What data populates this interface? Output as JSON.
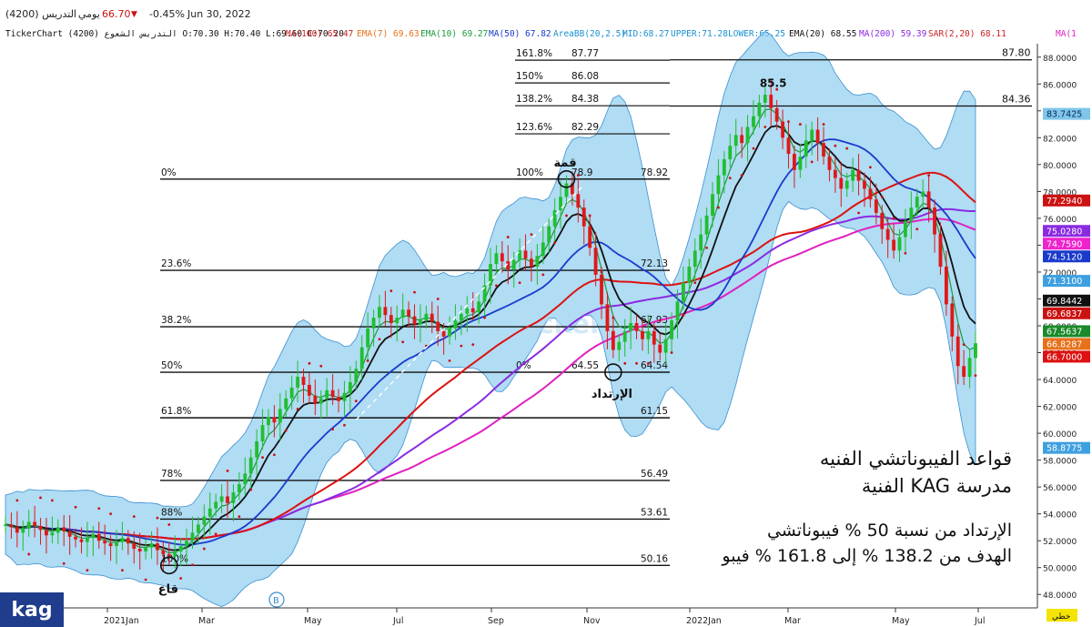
{
  "header": {
    "symbol_name": "(4200) التدريس",
    "period": "يومي",
    "last_price": "66.70",
    "change_pct": "-0.45%",
    "date": "Jun 30, 2022"
  },
  "indicators_row": {
    "ohlc": "TickerChart التدريس الشعوع (4200) O:70.30 H:70.40 L:69.60 C:70.20",
    "items": [
      {
        "text": "MA(100) 65.47",
        "color": "#cc2222"
      },
      {
        "text": "EMA(7) 69.63",
        "color": "#e8701a"
      },
      {
        "text": "EMA(10) 69.27",
        "color": "#1a9a3a"
      },
      {
        "text": "MA(50) 67.82",
        "color": "#1a3acc"
      },
      {
        "text": "AreaBB(20,2.5)",
        "color": "#1a90d0"
      },
      {
        "text": "MID:68.27",
        "color": "#1a90d0"
      },
      {
        "text": "UPPER:71.28",
        "color": "#1a90d0"
      },
      {
        "text": "LOWER:65.25",
        "color": "#1a90d0"
      },
      {
        "text": "EMA(20) 68.55",
        "color": "#111111"
      },
      {
        "text": "MA(200) 59.39",
        "color": "#8a2be2"
      },
      {
        "text": "SAR(2,20) 68.11",
        "color": "#cc2222"
      },
      {
        "text": "MA(1",
        "color": "#e020c0"
      }
    ]
  },
  "chart_data": {
    "type": "candlestick",
    "y_axis": {
      "ylim": [
        47,
        89
      ],
      "ticks": [
        "48.0000",
        "50.0000",
        "52.0000",
        "54.0000",
        "56.0000",
        "58.0000",
        "60.0000",
        "62.0000",
        "64.0000",
        "66.0000",
        "68.0000",
        "70.0000",
        "72.0000",
        "74.0000",
        "76.0000",
        "78.0000",
        "80.0000",
        "82.0000",
        "84.0000",
        "86.0000",
        "88.0000"
      ]
    },
    "x_axis": {
      "ticks": [
        "2021Jan",
        "Mar",
        "May",
        "Jul",
        "Sep",
        "Nov",
        "2022Jan",
        "Mar",
        "May",
        "Jul"
      ]
    },
    "price_tags": [
      {
        "value": 83.7425,
        "label": "83.7425",
        "color": "#7fc6ea",
        "text_color": "#0a2a5a"
      },
      {
        "value": 77.294,
        "label": "77.2940",
        "color": "#cc1111",
        "text_color": "#ffffff"
      },
      {
        "value": 75.028,
        "label": "75.0280",
        "color": "#8a2be2",
        "text_color": "#ffffff"
      },
      {
        "value": 74.759,
        "label": "74.7590",
        "color": "#ee22cc",
        "text_color": "#ffffff"
      },
      {
        "value": 74.512,
        "label": "74.5120",
        "color": "#1a3acc",
        "text_color": "#ffffff"
      },
      {
        "value": 71.31,
        "label": "71.3100",
        "color": "#3ea0e0",
        "text_color": "#ffffff"
      },
      {
        "value": 69.8442,
        "label": "69.8442",
        "color": "#111111",
        "text_color": "#ffffff"
      },
      {
        "value": 69.6837,
        "label": "69.6837",
        "color": "#cc1111",
        "text_color": "#ffffff"
      },
      {
        "value": 67.5637,
        "label": "67.5637",
        "color": "#1a8a2a",
        "text_color": "#ffffff"
      },
      {
        "value": 66.8287,
        "label": "66.8287",
        "color": "#e8701a",
        "text_color": "#ffffff"
      },
      {
        "value": 66.7,
        "label": "66.7000",
        "color": "#dd1111",
        "text_color": "#ffffff"
      },
      {
        "value": 58.8775,
        "label": "58.8775",
        "color": "#3ea0e0",
        "text_color": "#ffffff"
      }
    ],
    "fibonacci_1": {
      "levels": [
        {
          "label": "0%",
          "value": 78.92,
          "value_label": "78.92"
        },
        {
          "label": "23.6%",
          "value": 72.13,
          "value_label": "72.13"
        },
        {
          "label": "38.2%",
          "value": 67.93,
          "value_label": "67.93"
        },
        {
          "label": "50%",
          "value": 64.54,
          "value_label": "64.54"
        },
        {
          "label": "61.8%",
          "value": 61.15,
          "value_label": "61.15"
        },
        {
          "label": "78%",
          "value": 56.49,
          "value_label": "56.49"
        },
        {
          "label": "88%",
          "value": 53.61,
          "value_label": "53.61"
        },
        {
          "label": "100%",
          "value": 50.16,
          "value_label": "50.16"
        }
      ]
    },
    "fibonacci_2": {
      "levels": [
        {
          "label": "161.8%",
          "value": 87.77,
          "value_label": "87.77"
        },
        {
          "label": "150%",
          "value": 86.08,
          "value_label": "86.08"
        },
        {
          "label": "138.2%",
          "value": 84.38,
          "value_label": "84.38"
        },
        {
          "label": "123.6%",
          "value": 82.29,
          "value_label": "82.29"
        },
        {
          "label": "100%",
          "value": 78.92,
          "value_label": "78.9"
        },
        {
          "label": "0%",
          "value": 64.55,
          "value_label": "64.55"
        }
      ]
    },
    "target_lines": [
      {
        "value": 87.8,
        "label": "87.80"
      },
      {
        "value": 84.36,
        "label": "84.36"
      }
    ],
    "annotations": [
      {
        "text": "قمة",
        "value": 78.92
      },
      {
        "text": "الإرتداد",
        "value": 64.54
      },
      {
        "text": "قاع",
        "value": 50.16
      },
      {
        "text": "85.5",
        "value": 85.5
      }
    ],
    "close_series": [
      53.2,
      53.0,
      52.6,
      52.9,
      53.4,
      53.1,
      52.8,
      52.4,
      52.6,
      53.0,
      52.7,
      52.3,
      52.1,
      51.9,
      52.2,
      52.5,
      52.0,
      51.8,
      51.6,
      51.9,
      52.2,
      51.8,
      51.4,
      51.2,
      51.5,
      51.8,
      51.3,
      51.0,
      50.8,
      51.2,
      51.6,
      52.0,
      52.6,
      53.2,
      53.8,
      54.4,
      54.9,
      55.3,
      54.8,
      55.6,
      56.2,
      57.0,
      58.2,
      59.4,
      60.6,
      61.2,
      60.8,
      61.8,
      62.6,
      63.4,
      64.2,
      63.6,
      62.8,
      62.2,
      62.6,
      63.2,
      62.7,
      62.4,
      63.0,
      63.8,
      64.8,
      66.4,
      67.8,
      68.6,
      69.4,
      68.8,
      68.2,
      68.6,
      69.2,
      68.7,
      68.1,
      68.4,
      68.9,
      68.3,
      67.6,
      67.2,
      67.8,
      68.4,
      68.9,
      69.3,
      69.0,
      69.8,
      71.0,
      72.6,
      73.4,
      72.8,
      72.2,
      72.9,
      73.6,
      73.0,
      72.4,
      73.2,
      74.2,
      75.4,
      76.6,
      77.6,
      78.6,
      77.8,
      76.8,
      75.4,
      73.8,
      71.8,
      69.6,
      67.6,
      66.2,
      66.8,
      67.6,
      68.2,
      67.6,
      67.0,
      67.6,
      66.6,
      66.0,
      67.0,
      68.4,
      69.8,
      71.2,
      72.4,
      73.6,
      74.8,
      76.2,
      77.8,
      79.2,
      80.4,
      81.4,
      82.2,
      81.6,
      82.8,
      83.6,
      84.6,
      85.2,
      84.2,
      83.2,
      82.0,
      80.8,
      79.6,
      80.6,
      81.8,
      82.6,
      81.6,
      80.6,
      79.6,
      79.0,
      78.2,
      78.8,
      79.6,
      78.8,
      78.2,
      77.4,
      76.4,
      75.2,
      74.4,
      73.6,
      74.6,
      75.8,
      76.8,
      77.6,
      78.0,
      76.8,
      74.8,
      72.4,
      69.6,
      67.2,
      65.0,
      64.2,
      65.6,
      66.7
    ]
  },
  "fib_text": {
    "line1": "قواعد الفيبوناتشي الفنيه",
    "line2": "مدرسة KAG الفنية",
    "line3": "الإرتداد من نسبة 50 % فيبوناتشي",
    "line4": "الهدف من 138.2 % إلى 161.8 % فيبو"
  },
  "logo": {
    "text": "kag"
  },
  "watermark": "TickerChart",
  "scale_button": "B",
  "axis_corner_label": "خطي"
}
